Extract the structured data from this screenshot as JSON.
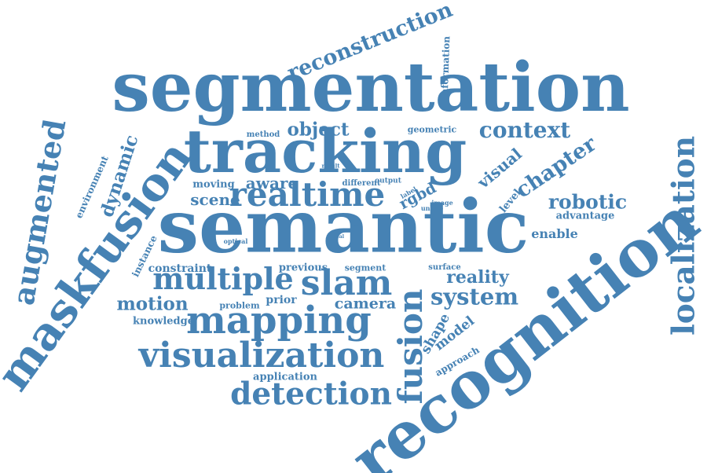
{
  "colors": {
    "word": "#4682b4",
    "background": "#ffffff"
  },
  "words": {
    "segmentation": "segmentation",
    "semantic": "semantic",
    "recognition": "recognition",
    "tracking": "tracking",
    "maskfusion": "maskfusion",
    "mapping": "mapping",
    "visualization": "visualization",
    "realtime": "realtime",
    "multiple": "multiple",
    "slam": "slam",
    "localization": "localization",
    "augmented": "augmented",
    "detection": "detection",
    "fusion": "fusion",
    "reconstruction": "reconstruction",
    "context": "context",
    "system": "system",
    "robotic": "robotic",
    "chapter": "chapter",
    "dynamic": "dynamic",
    "reality": "reality",
    "object": "object",
    "scene": "scene",
    "motion": "motion",
    "camera": "camera",
    "aware": "aware",
    "visual": "visual",
    "rgbd": "rgbd",
    "shape": "shape",
    "model": "model",
    "environment": "environment",
    "instance": "instance",
    "information": "information",
    "enable": "enable",
    "advantage": "advantage",
    "constraint": "constraint",
    "previous": "previous",
    "prior": "prior",
    "knowledge": "knowledge",
    "application": "application",
    "problem": "problem",
    "segment": "segment",
    "moving": "moving",
    "approach": "approach",
    "level": "level",
    "geometric": "geometric",
    "method": "method",
    "different": "different",
    "output": "output",
    "surface": "surface",
    "label": "label",
    "image": "image",
    "unlike": "unlike",
    "optical": "optical",
    "result": "result",
    "deal": "deal",
    "use": "use"
  }
}
